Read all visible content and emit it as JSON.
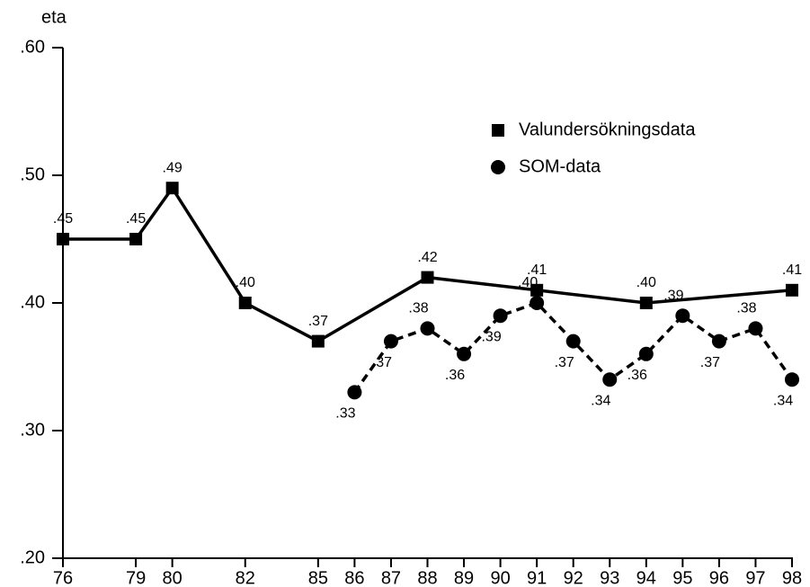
{
  "chart_data": {
    "type": "line",
    "y_axis_label": "eta",
    "categories": [
      "76",
      "79",
      "80",
      "82",
      "85",
      "86",
      "87",
      "88",
      "89",
      "90",
      "91",
      "92",
      "93",
      "94",
      "95",
      "96",
      "97",
      "98"
    ],
    "ylim": [
      0.2,
      0.6
    ],
    "yticks": [
      {
        "value": 0.2,
        "label": ".20"
      },
      {
        "value": 0.3,
        "label": ".30"
      },
      {
        "value": 0.4,
        "label": ".40"
      },
      {
        "value": 0.5,
        "label": ".50"
      },
      {
        "value": 0.6,
        "label": ".60"
      }
    ],
    "series": [
      {
        "name": "Valundersökningsdata",
        "color": "#000000",
        "marker": "square",
        "dashed": false,
        "x": [
          "76",
          "79",
          "80",
          "82",
          "85",
          "88",
          "91",
          "94",
          "98"
        ],
        "values": [
          0.45,
          0.45,
          0.49,
          0.4,
          0.37,
          0.42,
          0.41,
          0.4,
          0.41
        ],
        "value_labels": [
          ".45",
          ".45",
          ".49",
          ".40",
          ".37",
          ".42",
          ".41",
          ".40",
          ".41"
        ]
      },
      {
        "name": "SOM-data",
        "color": "#000000",
        "marker": "circle",
        "dashed": true,
        "x": [
          "86",
          "87",
          "88",
          "89",
          "90",
          "91",
          "92",
          "93",
          "94",
          "95",
          "96",
          "97",
          "98"
        ],
        "values": [
          0.33,
          0.37,
          0.38,
          0.36,
          0.39,
          0.4,
          0.37,
          0.34,
          0.36,
          0.39,
          0.37,
          0.38,
          0.34
        ],
        "value_labels": [
          ".33",
          ".37",
          ".38",
          ".36",
          ".39",
          ".40",
          ".37",
          ".34",
          ".36",
          ".39",
          ".37",
          ".38",
          ".34"
        ]
      }
    ]
  }
}
